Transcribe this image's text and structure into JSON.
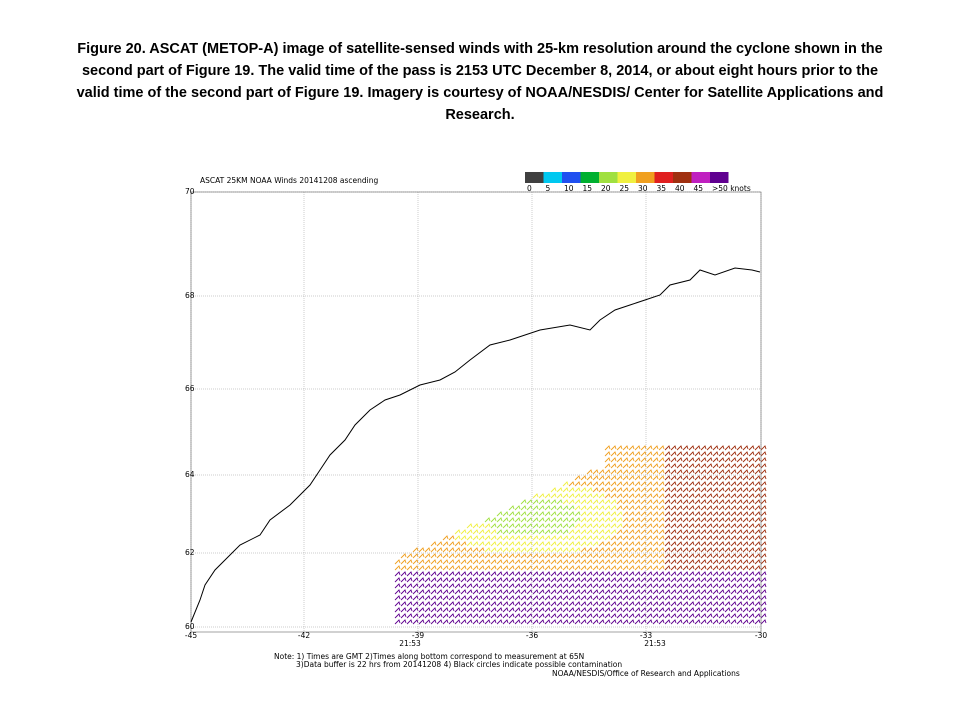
{
  "caption": {
    "lines": [
      "Figure 20.  ASCAT (METOP-A) image of satellite-sensed winds with 25-km resolution around the cyclone shown in the",
      "second part of Figure 19.  The valid time of the pass is 2153 UTC December 8, 2014, or about eight hours prior  to the",
      "valid time of the second part of Figure 19.  Imagery is courtesy of NOAA/NESDIS/  Center for Satellite Applications  and",
      "Research."
    ]
  },
  "map": {
    "title": "ASCAT 25KM NOAA Winds 20141208 ascending",
    "legend": {
      "labels": [
        "0",
        "5",
        "10",
        "15",
        "20",
        "25",
        "30",
        "35",
        "40",
        "45",
        ">50 knots"
      ],
      "colors": [
        "#404040",
        "#00c8f0",
        "#2050f0",
        "#00b030",
        "#a0e040",
        "#f0f040",
        "#f0a020",
        "#e02020",
        "#a03010",
        "#c020c0",
        "#600090"
      ]
    },
    "lat_labels": [
      "70",
      "68",
      "66",
      "64",
      "62",
      "60"
    ],
    "lon_labels": [
      "-45",
      "-42",
      "-39",
      "-36",
      "-33",
      "-30"
    ],
    "times": [
      "21:53",
      "21:53"
    ],
    "notes": [
      "Note: 1) Times are GMT 2)Times along bottom correspond to measurement at 65N",
      "3)Data buffer is 22 hrs from 20141208 4) Black circles indicate possible contamination"
    ],
    "credit": "NOAA/NESDIS/Office of Research and Applications"
  }
}
